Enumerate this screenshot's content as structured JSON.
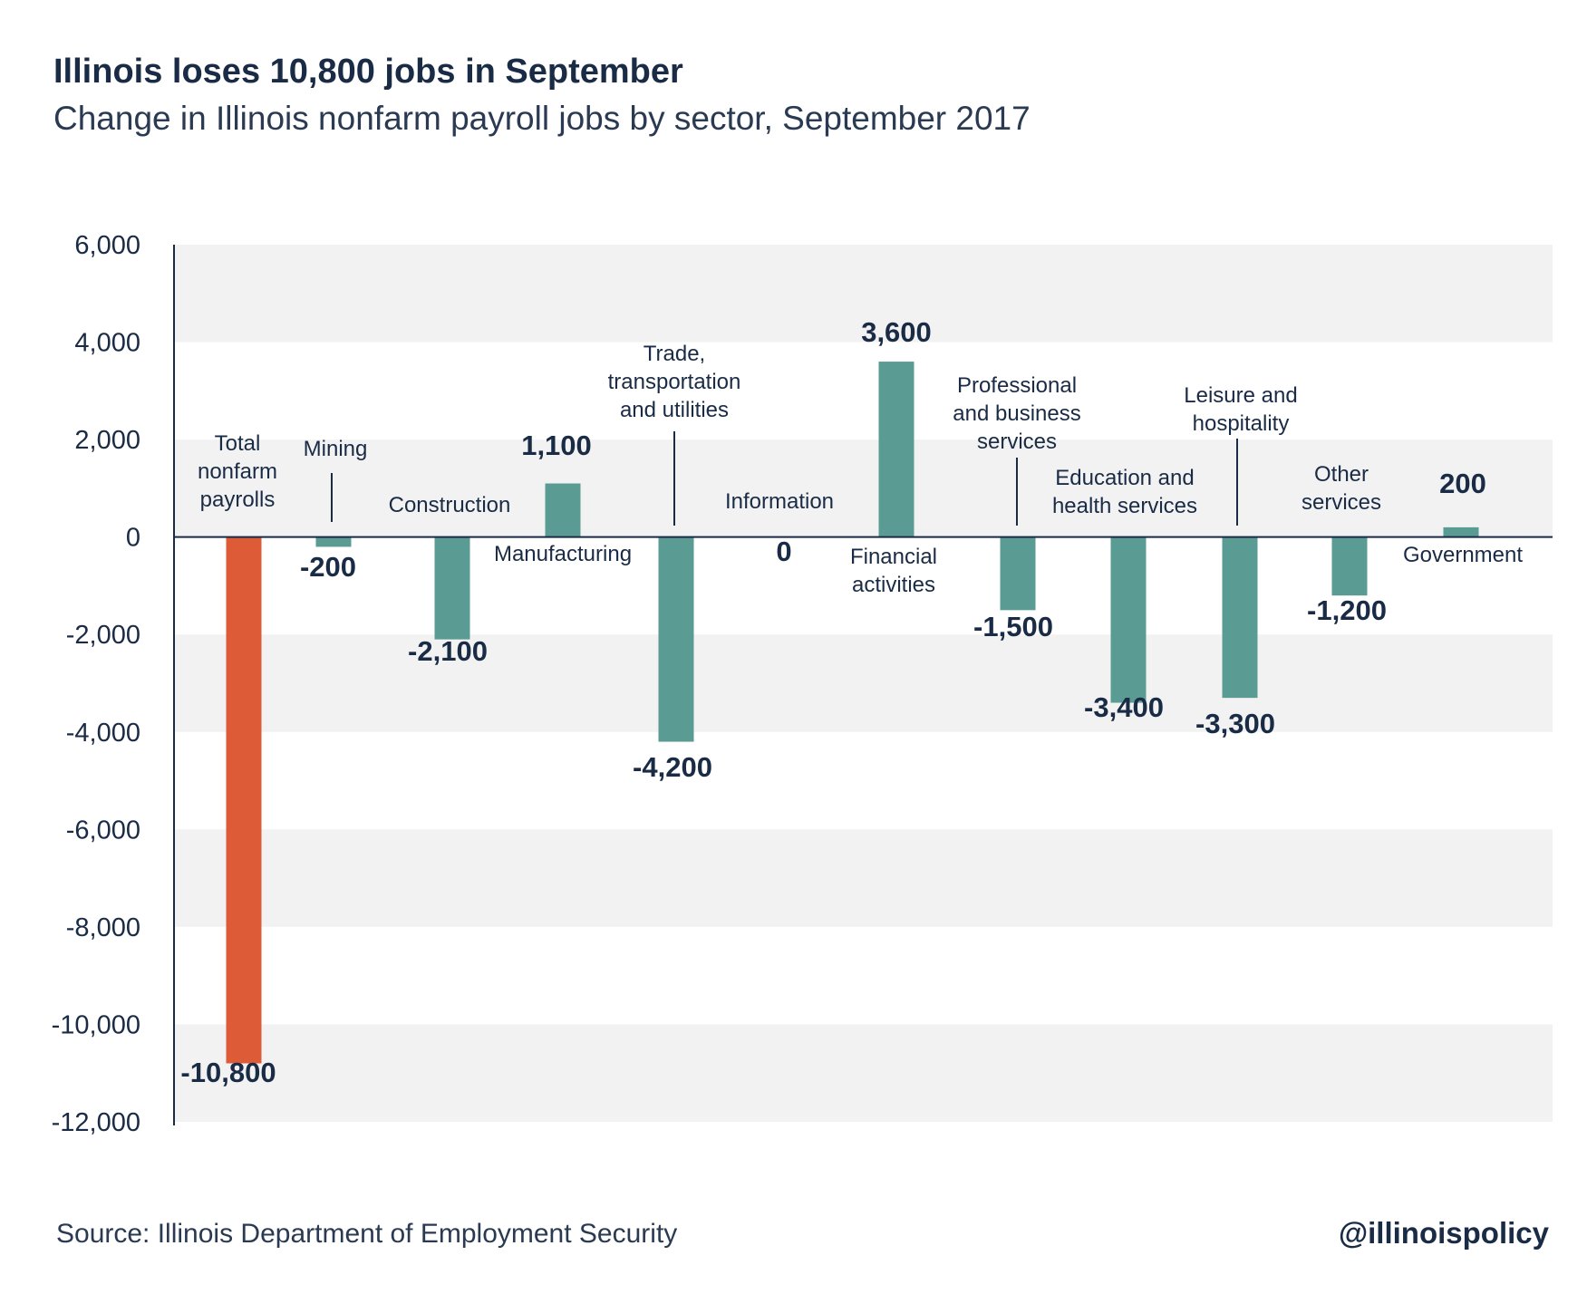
{
  "header": {
    "title": "Illinois loses 10,800 jobs in September",
    "subtitle": "Change in Illinois nonfarm payroll jobs by sector, September 2017"
  },
  "footer": {
    "source": "Source: Illinois Department of Employment Security",
    "handle": "@illinoispolicy"
  },
  "colors": {
    "total_bar": "#de5b37",
    "sector_bar": "#5a9c93",
    "band": "#f2f2f2",
    "text": "#1a2b45"
  },
  "chart_data": {
    "type": "bar",
    "title": "Illinois loses 10,800 jobs in September",
    "subtitle": "Change in Illinois nonfarm payroll jobs by sector, September 2017",
    "categories": [
      "Total nonfarm payrolls",
      "Mining",
      "Construction",
      "Manufacturing",
      "Trade, transportation and utilities",
      "Information",
      "Financial activities",
      "Professional and business services",
      "Education and health services",
      "Leisure and hospitality",
      "Other services",
      "Government"
    ],
    "values": [
      -10800,
      -200,
      -2100,
      1100,
      -4200,
      0,
      3600,
      -1500,
      -3400,
      -3300,
      -1200,
      200
    ],
    "value_labels": [
      "-10,800",
      "-200",
      "-2,100",
      "1,100",
      "-4,200",
      "0",
      "3,600",
      "-1,500",
      "-3,400",
      "-3,300",
      "-1,200",
      "200"
    ],
    "ylim": [
      -12000,
      6000
    ],
    "yticks": [
      6000,
      4000,
      2000,
      0,
      -2000,
      -4000,
      -6000,
      -8000,
      -10000,
      -12000
    ],
    "ytick_labels": [
      "6,000",
      "4,000",
      "2,000",
      "0",
      "-2,000",
      "-4,000",
      "-6,000",
      "-8,000",
      "-10,000",
      "-12,000"
    ],
    "xlabel": "",
    "ylabel": "",
    "grid": "alternating horizontal bands",
    "legend": "none",
    "highlight_category": "Total nonfarm payrolls"
  }
}
